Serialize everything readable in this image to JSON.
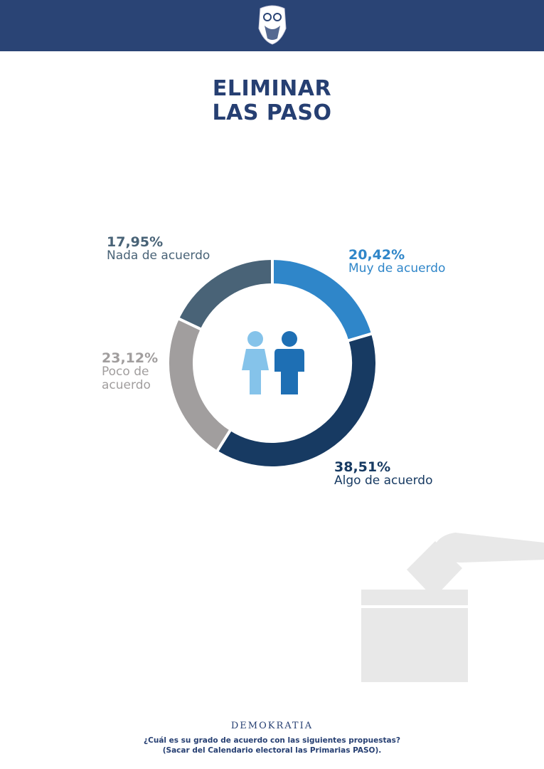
{
  "chart_data": {
    "type": "pie",
    "title": "ELIMINAR LAS PASO",
    "categories": [
      "Muy de acuerdo",
      "Algo de acuerdo",
      "Poco de acuerdo",
      "Nada de acuerdo"
    ],
    "values": [
      20.42,
      38.51,
      23.12,
      17.95
    ],
    "value_labels": [
      "20,42%",
      "38,51%",
      "23,12%",
      "17,95%"
    ],
    "colors": [
      "#2f86c9",
      "#173a62",
      "#a19e9e",
      "#496377"
    ],
    "donut": true
  },
  "footer": {
    "brand": "DEMOKRATIA",
    "question": "¿Cuál es su grado de acuerdo con las siguientes propuestas?",
    "note": "(Sacar del Calendario electoral las Primarias PASO)."
  }
}
